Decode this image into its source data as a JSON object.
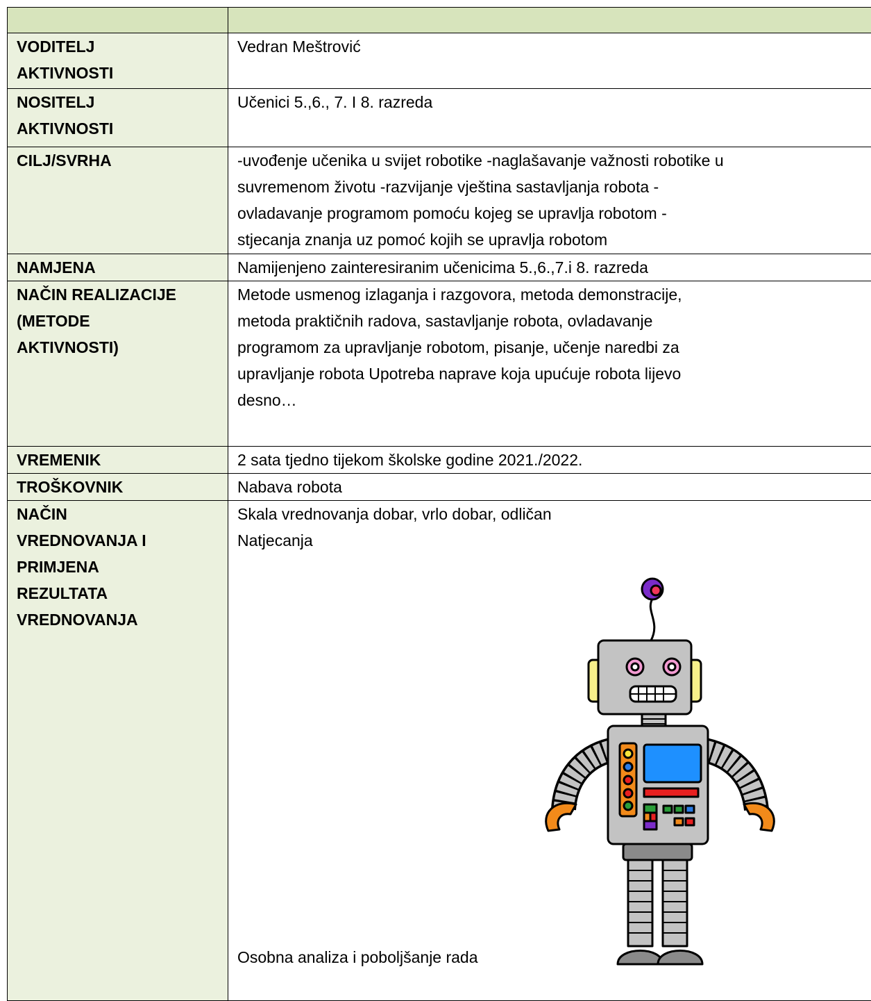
{
  "table": {
    "rows": [
      {
        "label": [
          "VODITELJ",
          "AKTIVNOSTI"
        ],
        "content": [
          "Vedran Meštrović"
        ]
      },
      {
        "label": [
          "NOSITELJ",
          "AKTIVNOSTI"
        ],
        "content": [
          "Učenici 5.,6., 7. I 8. razreda"
        ]
      },
      {
        "label": [
          "CILJ/SVRHA"
        ],
        "content": [
          "-uvođenje učenika u svijet robotike -naglašavanje važnosti robotike u",
          "suvremenom životu -razvijanje vještina sastavljanja robota -",
          "ovladavanje programom pomoću kojeg se upravlja robotom -",
          "stjecanja znanja uz pomoć kojih se upravlja robotom"
        ]
      },
      {
        "label": [
          "NAMJENA"
        ],
        "content": [
          "Namijenjeno zainteresiranim učenicima 5.,6.,7.i 8. razreda"
        ]
      },
      {
        "label": [
          "NAČIN REALIZACIJE",
          "(METODE",
          "AKTIVNOSTI)"
        ],
        "content": [
          "Metode usmenog izlaganja i razgovora, metoda demonstracije,",
          "metoda praktičnih radova, sastavljanje robota, ovladavanje",
          "programom za upravljanje robotom, pisanje, učenje naredbi za",
          "upravljanje robota Upotreba naprave koja upućuje robota lijevo",
          "desno…"
        ]
      },
      {
        "label": [
          "VREMENIK"
        ],
        "content": [
          "2 sata tjedno tijekom školske godine 2021./2022."
        ]
      },
      {
        "label": [
          "TROŠKOVNIK"
        ],
        "content": [
          "Nabava robota"
        ]
      },
      {
        "label": [
          "NAČIN",
          "VREDNOVANJA I",
          "PRIMJENA",
          "REZULTATA",
          "VREDNOVANJA"
        ],
        "content": [
          "Skala vrednovanja dobar, vrlo dobar, odličan",
          "Natjecanja"
        ],
        "footer": "Osobna analiza i poboljšanje rada"
      }
    ]
  }
}
